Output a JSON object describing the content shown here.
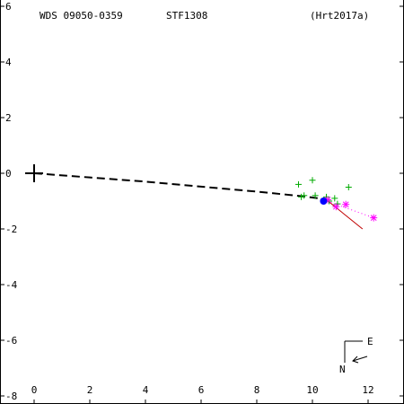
{
  "header": {
    "wds_id": "WDS 09050-0359",
    "discoverer": "STF1308",
    "orbit_ref": "(Hrt2017a)"
  },
  "compass": {
    "east_label": "E",
    "north_label": "N"
  },
  "chart_data": {
    "type": "scatter",
    "title": "",
    "xlabel": "",
    "ylabel": "",
    "xlim": [
      -1.2,
      13.4
    ],
    "ylim": [
      -8,
      6
    ],
    "x_ticks": [
      0,
      2,
      4,
      6,
      8,
      10,
      12
    ],
    "x_tick_labels": [
      "0",
      "2",
      "4",
      "6",
      "8",
      "10",
      "12"
    ],
    "y_ticks": [
      6,
      4,
      2,
      0,
      -2,
      -4,
      -6,
      -8
    ],
    "y_tick_labels": [
      "6",
      "4",
      "2",
      "0",
      "-2",
      "-4",
      "-6",
      "-8"
    ],
    "grid": false,
    "primary_star": {
      "x": 0,
      "y": 0
    },
    "orbit_path": {
      "style": "dashed",
      "color": "#000000",
      "points": [
        [
          0.0,
          0.0
        ],
        [
          2.0,
          -0.15
        ],
        [
          4.0,
          -0.3
        ],
        [
          6.0,
          -0.48
        ],
        [
          8.0,
          -0.66
        ],
        [
          9.4,
          -0.8
        ],
        [
          10.4,
          -0.92
        ]
      ]
    },
    "series": [
      {
        "marker": "plus",
        "color": "#00aa00",
        "points": [
          [
            9.5,
            -0.4
          ],
          [
            10.0,
            -0.25
          ],
          [
            9.7,
            -0.8
          ],
          [
            10.1,
            -0.8
          ],
          [
            10.5,
            -0.85
          ],
          [
            10.8,
            -0.9
          ],
          [
            11.3,
            -0.5
          ],
          [
            10.9,
            -1.1
          ],
          [
            10.6,
            -1.0
          ],
          [
            9.6,
            -0.85
          ]
        ]
      },
      {
        "marker": "asterisk",
        "color": "#ff00ff",
        "points": [
          [
            12.2,
            -1.6
          ],
          [
            11.2,
            -1.12
          ],
          [
            10.85,
            -1.2
          ],
          [
            10.55,
            -0.95
          ]
        ]
      },
      {
        "marker": "dot",
        "color": "#0000ff",
        "points": [
          [
            10.4,
            -1.0
          ]
        ]
      }
    ],
    "residual_lines": [
      {
        "color": "#c00000",
        "from": [
          10.5,
          -0.95
        ],
        "to": [
          11.8,
          -2.0
        ]
      },
      {
        "color": "#ff00ff",
        "style": "dotted",
        "from": [
          10.3,
          -0.92
        ],
        "to": [
          12.2,
          -1.6
        ]
      }
    ]
  }
}
